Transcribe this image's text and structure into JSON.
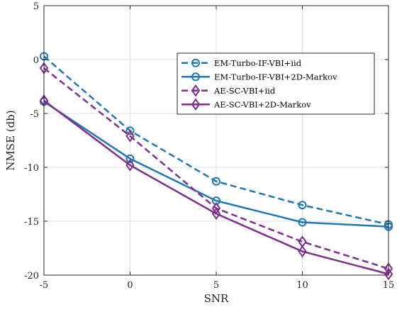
{
  "chart_data": {
    "type": "line",
    "x": [
      -5,
      0,
      5,
      10,
      15
    ],
    "xlabel": "SNR",
    "ylabel": "NMSE (db)",
    "xlim": [
      -5,
      15
    ],
    "ylim": [
      -20,
      5
    ],
    "xticks": [
      -5,
      0,
      5,
      10,
      15
    ],
    "yticks": [
      -20,
      -15,
      -10,
      -5,
      0,
      5
    ],
    "grid": true,
    "legend_position": "top-right",
    "series": [
      {
        "name": "EM-Turbo-IF-VBI+iid",
        "values": [
          0.3,
          -6.6,
          -11.3,
          -13.5,
          -15.3
        ],
        "color": "#1f77b4",
        "dash": "dashed",
        "marker": "circle"
      },
      {
        "name": "EM-Turbo-IF-VBI+2D-Markov",
        "values": [
          -3.9,
          -9.2,
          -13.1,
          -15.1,
          -15.5
        ],
        "color": "#1f77b4",
        "dash": "solid",
        "marker": "circle"
      },
      {
        "name": "AE-SC-VBI+iid",
        "values": [
          -0.8,
          -7.1,
          -13.8,
          -16.9,
          -19.4
        ],
        "color": "#7e2f8e",
        "dash": "dashed",
        "marker": "diamond"
      },
      {
        "name": "AE-SC-VBI+2D-Markov",
        "values": [
          -3.8,
          -9.8,
          -14.3,
          -17.8,
          -19.9
        ],
        "color": "#7e2f8e",
        "dash": "solid",
        "marker": "diamond"
      }
    ]
  }
}
